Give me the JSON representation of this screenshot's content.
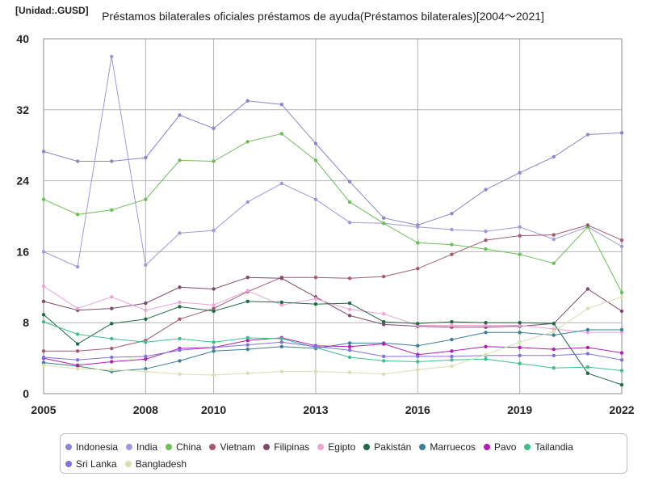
{
  "header": {
    "unit": "[Unidad:.GUSD]",
    "title": "Préstamos bilaterales oficiales préstamos de ayuda(Préstamos bilaterales)[2004～2021]"
  },
  "chart_data": {
    "type": "line",
    "title": "Préstamos bilaterales oficiales préstamos de ayuda(Préstamos bilaterales)[2004～2021]",
    "unit": "[Unidad:.GUSD]",
    "x": [
      2005,
      2006,
      2007,
      2008,
      2009,
      2010,
      2011,
      2012,
      2013,
      2014,
      2015,
      2016,
      2017,
      2018,
      2019,
      2020,
      2021,
      2022
    ],
    "x_tick_labels": [
      "2005",
      "2008",
      "2010",
      "2013",
      "2016",
      "2019",
      "2022"
    ],
    "x_tick_positions": [
      2005,
      2008,
      2010,
      2013,
      2016,
      2019,
      2022
    ],
    "ylim": [
      0,
      40
    ],
    "y_ticks": [
      0,
      8,
      16,
      24,
      32,
      40
    ],
    "grid": true,
    "legend_position": "bottom",
    "series": [
      {
        "name": "Indonesia",
        "color": "#8a86d0",
        "values": [
          27.3,
          26.2,
          26.2,
          26.6,
          31.4,
          29.9,
          33.0,
          32.6,
          28.2,
          23.9,
          19.8,
          19.0,
          20.3,
          23.0,
          24.9,
          26.7,
          29.2,
          29.4
        ]
      },
      {
        "name": "India",
        "color": "#9f99dc",
        "values": [
          16.0,
          14.3,
          38.0,
          14.5,
          18.1,
          18.4,
          21.6,
          23.7,
          21.9,
          19.3,
          19.2,
          18.8,
          18.5,
          18.3,
          18.8,
          17.4,
          18.8,
          16.6
        ]
      },
      {
        "name": "China",
        "color": "#6cbf56",
        "values": [
          21.9,
          20.2,
          20.7,
          21.9,
          26.3,
          26.2,
          28.4,
          29.3,
          26.3,
          21.6,
          19.2,
          17.0,
          16.8,
          16.3,
          15.7,
          14.7,
          18.8,
          11.4
        ]
      },
      {
        "name": "Vietnam",
        "color": "#a35a6e",
        "values": [
          4.8,
          4.8,
          5.1,
          6.0,
          8.4,
          9.6,
          11.5,
          13.1,
          13.1,
          13.0,
          13.2,
          14.1,
          15.7,
          17.3,
          17.8,
          17.9,
          19.0,
          17.3
        ]
      },
      {
        "name": "Filipinas",
        "color": "#7e4a6c",
        "values": [
          10.4,
          9.4,
          9.6,
          10.2,
          12.0,
          11.8,
          13.1,
          13.0,
          10.9,
          8.8,
          7.8,
          7.6,
          7.5,
          7.5,
          7.6,
          7.9,
          11.8,
          9.3
        ]
      },
      {
        "name": "Egipto",
        "color": "#f0a3d8",
        "values": [
          12.1,
          9.6,
          10.9,
          9.4,
          10.3,
          10.0,
          11.6,
          10.0,
          10.7,
          9.5,
          9.0,
          7.7,
          7.7,
          7.7,
          7.7,
          7.3,
          6.9,
          6.9
        ]
      },
      {
        "name": "Pakistán",
        "color": "#1f6a43",
        "values": [
          8.9,
          5.6,
          7.9,
          8.4,
          9.8,
          9.3,
          10.4,
          10.3,
          10.1,
          10.2,
          8.1,
          7.9,
          8.1,
          8.0,
          8.0,
          7.9,
          2.3,
          1.0
        ]
      },
      {
        "name": "Marruecos",
        "color": "#3a7f98",
        "values": [
          3.5,
          3.1,
          2.5,
          2.8,
          3.7,
          4.8,
          5.0,
          5.3,
          5.1,
          5.7,
          5.7,
          5.4,
          6.1,
          6.9,
          6.9,
          6.6,
          7.2,
          7.2
        ]
      },
      {
        "name": "Pavo",
        "color": "#b21db2",
        "values": [
          4.0,
          3.2,
          3.6,
          3.9,
          5.1,
          5.2,
          6.0,
          6.3,
          5.4,
          5.3,
          5.6,
          4.4,
          4.8,
          5.3,
          5.2,
          5.0,
          5.2,
          4.6
        ]
      },
      {
        "name": "Tailandia",
        "color": "#3fc08a",
        "values": [
          8.1,
          6.7,
          6.2,
          5.8,
          6.2,
          5.8,
          6.3,
          6.2,
          5.2,
          4.1,
          3.7,
          3.6,
          3.8,
          3.9,
          3.4,
          2.9,
          3.0,
          2.6
        ]
      },
      {
        "name": "Sri Lanka",
        "color": "#7d74dc",
        "values": [
          4.1,
          3.8,
          4.1,
          4.2,
          4.9,
          5.2,
          5.5,
          5.8,
          5.3,
          4.9,
          4.2,
          4.2,
          4.2,
          4.3,
          4.3,
          4.3,
          4.5,
          3.8
        ]
      },
      {
        "name": "Bangladesh",
        "color": "#d8e0b0",
        "values": [
          3.2,
          2.8,
          2.7,
          2.5,
          2.2,
          2.1,
          2.3,
          2.5,
          2.5,
          2.4,
          2.2,
          2.7,
          3.1,
          4.4,
          5.8,
          7.0,
          9.6,
          10.9
        ]
      }
    ]
  }
}
